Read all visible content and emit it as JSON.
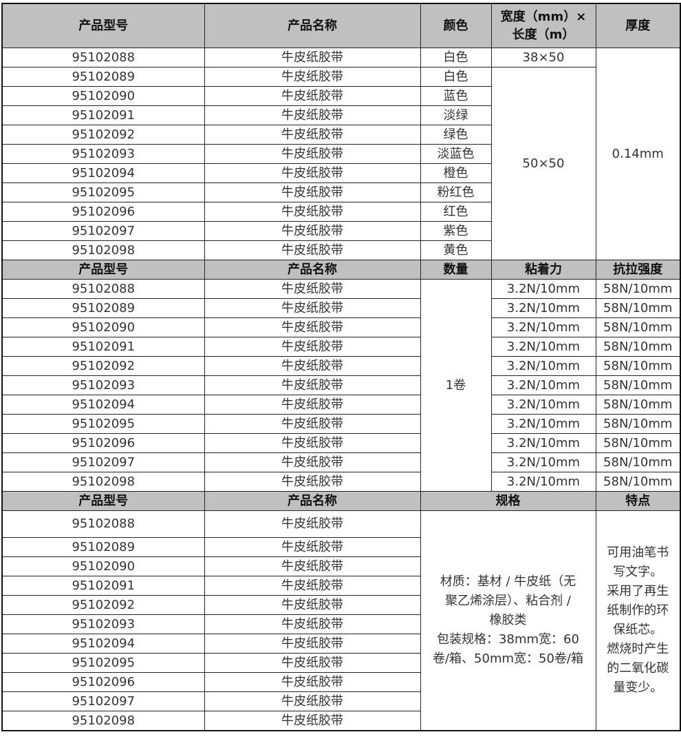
{
  "section1": {
    "headers": [
      "产品型号",
      "产品名称",
      "颜色",
      "宽度（mm）×\n长度（m）",
      "厚度"
    ],
    "rows": [
      {
        "model": "95102088",
        "name": "牛皮纸胶带",
        "color": "白色"
      },
      {
        "model": "95102089",
        "name": "牛皮纸胶带",
        "color": "白色"
      },
      {
        "model": "95102090",
        "name": "牛皮纸胶带",
        "color": "蓝色"
      },
      {
        "model": "95102091",
        "name": "牛皮纸胶带",
        "color": "淡绿"
      },
      {
        "model": "95102092",
        "name": "牛皮纸胶带",
        "color": "绿色"
      },
      {
        "model": "95102093",
        "name": "牛皮纸胶带",
        "color": "淡蓝色"
      },
      {
        "model": "95102094",
        "name": "牛皮纸胶带",
        "color": "橙色"
      },
      {
        "model": "95102095",
        "name": "牛皮纸胶带",
        "color": "粉红色"
      },
      {
        "model": "95102096",
        "name": "牛皮纸胶带",
        "color": "红色"
      },
      {
        "model": "95102097",
        "name": "牛皮纸胶带",
        "color": "紫色"
      },
      {
        "model": "95102098",
        "name": "牛皮纸胶带",
        "color": "黄色"
      }
    ],
    "size_first": "38×50",
    "size_rest": "50×50",
    "thickness": "0.14mm"
  },
  "section2": {
    "headers": [
      "产品型号",
      "产品名称",
      "数量",
      "粘着力",
      "抗拉强度"
    ],
    "rows": [
      {
        "model": "95102088",
        "name": "牛皮纸胶带",
        "adhesion": "3.2N/10mm",
        "tensile": "58N/10mm"
      },
      {
        "model": "95102089",
        "name": "牛皮纸胶带",
        "adhesion": "3.2N/10mm",
        "tensile": "58N/10mm"
      },
      {
        "model": "95102090",
        "name": "牛皮纸胶带",
        "adhesion": "3.2N/10mm",
        "tensile": "58N/10mm"
      },
      {
        "model": "95102091",
        "name": "牛皮纸胶带",
        "adhesion": "3.2N/10mm",
        "tensile": "58N/10mm"
      },
      {
        "model": "95102092",
        "name": "牛皮纸胶带",
        "adhesion": "3.2N/10mm",
        "tensile": "58N/10mm"
      },
      {
        "model": "95102093",
        "name": "牛皮纸胶带",
        "adhesion": "3.2N/10mm",
        "tensile": "58N/10mm"
      },
      {
        "model": "95102094",
        "name": "牛皮纸胶带",
        "adhesion": "3.2N/10mm",
        "tensile": "58N/10mm"
      },
      {
        "model": "95102095",
        "name": "牛皮纸胶带",
        "adhesion": "3.2N/10mm",
        "tensile": "58N/10mm"
      },
      {
        "model": "95102096",
        "name": "牛皮纸胶带",
        "adhesion": "3.2N/10mm",
        "tensile": "58N/10mm"
      },
      {
        "model": "95102097",
        "name": "牛皮纸胶带",
        "adhesion": "3.2N/10mm",
        "tensile": "58N/10mm"
      },
      {
        "model": "95102098",
        "name": "牛皮纸胶带",
        "adhesion": "3.2N/10mm",
        "tensile": "58N/10mm"
      }
    ],
    "quantity": "1卷"
  },
  "section3": {
    "headers": [
      "产品型号",
      "产品名称",
      "规格",
      "特点"
    ],
    "rows": [
      {
        "model": "95102088",
        "name": "牛皮纸胶带"
      },
      {
        "model": "95102089",
        "name": "牛皮纸胶带"
      },
      {
        "model": "95102090",
        "name": "牛皮纸胶带"
      },
      {
        "model": "95102091",
        "name": "牛皮纸胶带"
      },
      {
        "model": "95102092",
        "name": "牛皮纸胶带"
      },
      {
        "model": "95102093",
        "name": "牛皮纸胶带"
      },
      {
        "model": "95102094",
        "name": "牛皮纸胶带"
      },
      {
        "model": "95102095",
        "name": "牛皮纸胶带"
      },
      {
        "model": "95102096",
        "name": "牛皮纸胶带"
      },
      {
        "model": "95102097",
        "name": "牛皮纸胶带"
      },
      {
        "model": "95102098",
        "name": "牛皮纸胶带"
      }
    ],
    "spec": "材质：基材 / 牛皮纸（无\n聚乙烯涂层）、粘合剂 /\n橡胶类\n包装规格：38mm宽：60\n卷/箱、50mm宽：50卷/箱",
    "features": "可用油笔书\n写文字。\n采用了再生\n纸制作的环\n保纸芯。\n燃烧时产生\n的二氧化碳\n量变少。"
  }
}
